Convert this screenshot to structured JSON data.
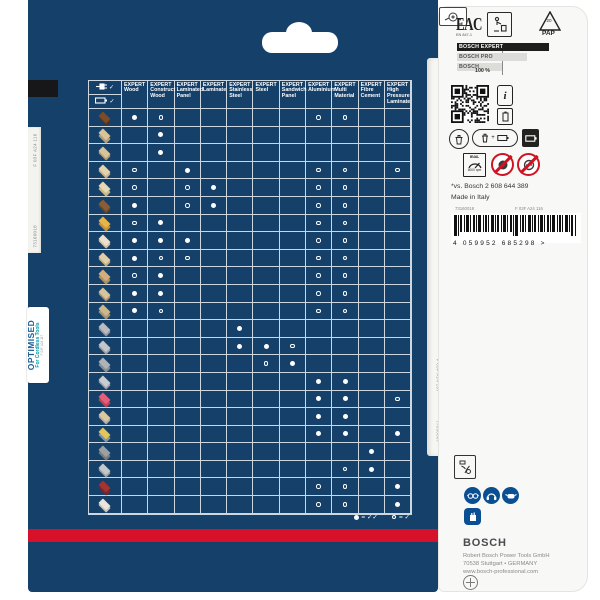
{
  "legend_filled": "= ✓✓",
  "legend_open": "= ✓",
  "side_labels": {
    "left_code_1": "73160018",
    "left_code_2": "F 03F A24 116",
    "right_code_1": "F 03F A24 107",
    "right_code_2": "77060007"
  },
  "optimised_badge": {
    "title": "OPTIMISED",
    "subtitle": "For Cordless Tools",
    "code": "F 03F A24 117"
  },
  "compat_table": {
    "power_rows": [
      {
        "icon": "plug-icon",
        "check": "✓"
      },
      {
        "icon": "battery-icon",
        "check": "✓"
      }
    ],
    "columns": [
      {
        "brand": "EXPERT",
        "name": "Wood"
      },
      {
        "brand": "EXPERT",
        "name": "Construct Wood"
      },
      {
        "brand": "EXPERT",
        "name": "Laminated Panel"
      },
      {
        "brand": "EXPERT",
        "name": "Laminate"
      },
      {
        "brand": "EXPERT",
        "name": "Stainless Steel"
      },
      {
        "brand": "EXPERT",
        "name": "Steel"
      },
      {
        "brand": "EXPERT",
        "name": "Sandwich Panel"
      },
      {
        "brand": "EXPERT",
        "name": "Aluminium"
      },
      {
        "brand": "EXPERT",
        "name": "Multi Material"
      },
      {
        "brand": "EXPERT",
        "name": "Fibre Cement"
      },
      {
        "brand": "EXPERT",
        "name": "High Pressure Laminate"
      }
    ],
    "rows": [
      {
        "icon": "hardwood-boards-icon",
        "colors": [
          "#7b4b2a",
          "#54331d"
        ],
        "dots": {
          "1": "f",
          "2": "o",
          "8": "o",
          "9": "o"
        }
      },
      {
        "icon": "rough-sawn-timber-icon",
        "colors": [
          "#d8c49c",
          "#b59d74"
        ],
        "dots": {
          "2": "f"
        }
      },
      {
        "icon": "construction-timber-icon",
        "colors": [
          "#d8c49c",
          "#b09870"
        ],
        "dots": {
          "2": "f"
        }
      },
      {
        "icon": "chipboard-icon",
        "colors": [
          "#e2d3ae",
          "#c4b189"
        ],
        "dots": {
          "1": "o",
          "3": "f",
          "8": "o",
          "9": "o",
          "11": "o"
        }
      },
      {
        "icon": "mdf-board-icon",
        "colors": [
          "#e6d9b4",
          "#c9b88c"
        ],
        "dots": {
          "1": "o",
          "3": "o",
          "4": "f",
          "8": "o",
          "9": "o"
        }
      },
      {
        "icon": "veneered-board-icon",
        "colors": [
          "#8a5d36",
          "#6b4527"
        ],
        "dots": {
          "1": "f",
          "3": "o",
          "4": "f",
          "8": "o",
          "9": "o"
        }
      },
      {
        "icon": "osb-board-icon",
        "colors": [
          "#e5b54a",
          "#c2913a"
        ],
        "dots": {
          "1": "o",
          "2": "f",
          "8": "o",
          "9": "o"
        }
      },
      {
        "icon": "plywood-icon",
        "colors": [
          "#ece2cb",
          "#cfc3a4"
        ],
        "dots": {
          "1": "f",
          "2": "f",
          "3": "f",
          "8": "o",
          "9": "o"
        }
      },
      {
        "icon": "blockboard-icon",
        "colors": [
          "#e0cfa8",
          "#bfae85"
        ],
        "dots": {
          "1": "f",
          "2": "o",
          "3": "o",
          "8": "o",
          "9": "o"
        }
      },
      {
        "icon": "solid-wood-panel-icon",
        "colors": [
          "#d2ae7e",
          "#b08f60"
        ],
        "dots": {
          "1": "o",
          "2": "f",
          "8": "o",
          "9": "o"
        }
      },
      {
        "icon": "parquet-icon",
        "colors": [
          "#d8c49c",
          "#a8916a"
        ],
        "dots": {
          "1": "f",
          "2": "f",
          "8": "o",
          "9": "o"
        }
      },
      {
        "icon": "woven-panel-icon",
        "colors": [
          "#cdb88e",
          "#a8946c"
        ],
        "dots": {
          "1": "f",
          "2": "o",
          "8": "o",
          "9": "o"
        }
      },
      {
        "icon": "stainless-steel-profile-icon",
        "colors": [
          "#b9bdc1",
          "#8f959b"
        ],
        "dots": {
          "5": "f"
        }
      },
      {
        "icon": "steel-sheet-icon",
        "colors": [
          "#c3c7cb",
          "#999fa5"
        ],
        "dots": {
          "5": "f",
          "6": "f",
          "7": "o"
        }
      },
      {
        "icon": "corrugated-sheet-icon",
        "colors": [
          "#aeb3bb",
          "#878d96"
        ],
        "dots": {
          "6": "o",
          "7": "f"
        }
      },
      {
        "icon": "aluminium-profile-icon",
        "colors": [
          "#c9ccd1",
          "#9aa0a7"
        ],
        "dots": {
          "8": "f",
          "9": "f"
        }
      },
      {
        "icon": "acrylic-panel-icon",
        "colors": [
          "#e4607a",
          "#c04058"
        ],
        "dots": {
          "8": "f",
          "9": "f",
          "11": "o"
        }
      },
      {
        "icon": "wood-sandwich-panel-icon",
        "colors": [
          "#d9c8a2",
          "#a9a9ad"
        ],
        "dots": {
          "8": "f",
          "9": "f"
        }
      },
      {
        "icon": "multi-material-panel-icon",
        "colors": [
          "#e3c658",
          "#7e95ad"
        ],
        "dots": {
          "8": "f",
          "9": "f",
          "11": "f"
        }
      },
      {
        "icon": "fibre-cement-board-icon",
        "colors": [
          "#9ba1a3",
          "#767c7e"
        ],
        "dots": {
          "10": "f"
        }
      },
      {
        "icon": "fibre-cement-sheet-icon",
        "colors": [
          "#c4c8c8",
          "#9aa0a0"
        ],
        "dots": {
          "9": "o",
          "10": "f"
        }
      },
      {
        "icon": "solid-laminate-dark-icon",
        "colors": [
          "#a23434",
          "#7c2424"
        ],
        "dots": {
          "8": "o",
          "9": "o",
          "11": "f"
        }
      },
      {
        "icon": "solid-laminate-light-icon",
        "colors": [
          "#eae6de",
          "#c6c2b8"
        ],
        "dots": {
          "8": "o",
          "9": "o",
          "11": "f"
        }
      }
    ]
  },
  "right_panel": {
    "eac_label": "EAC",
    "eac_sub": "EN 847-1",
    "pap_number": "20",
    "pap_label": "PAP",
    "bars": {
      "expert": "BOSCH EXPERT",
      "pro": "BOSCH PRO",
      "standard": "BOSCH",
      "scale": "100 %"
    },
    "info_glyph": "i",
    "bin_battery_plus": "+",
    "max_label": "max.",
    "max_value": "6000 rpm",
    "compare_note": "*vs. Bosch 2 608 644 389",
    "made_in": "Made in Italy",
    "code_left": "73160018",
    "code_right": "F 03F A24 116",
    "barcode_digits": "4 059952 685298 >",
    "bosch_logo": "BOSCH",
    "address_lines": [
      "Robert Bosch Power Tools GmbH",
      "70538 Stuttgart • GERMANY",
      "www.bosch-professional.com"
    ]
  }
}
